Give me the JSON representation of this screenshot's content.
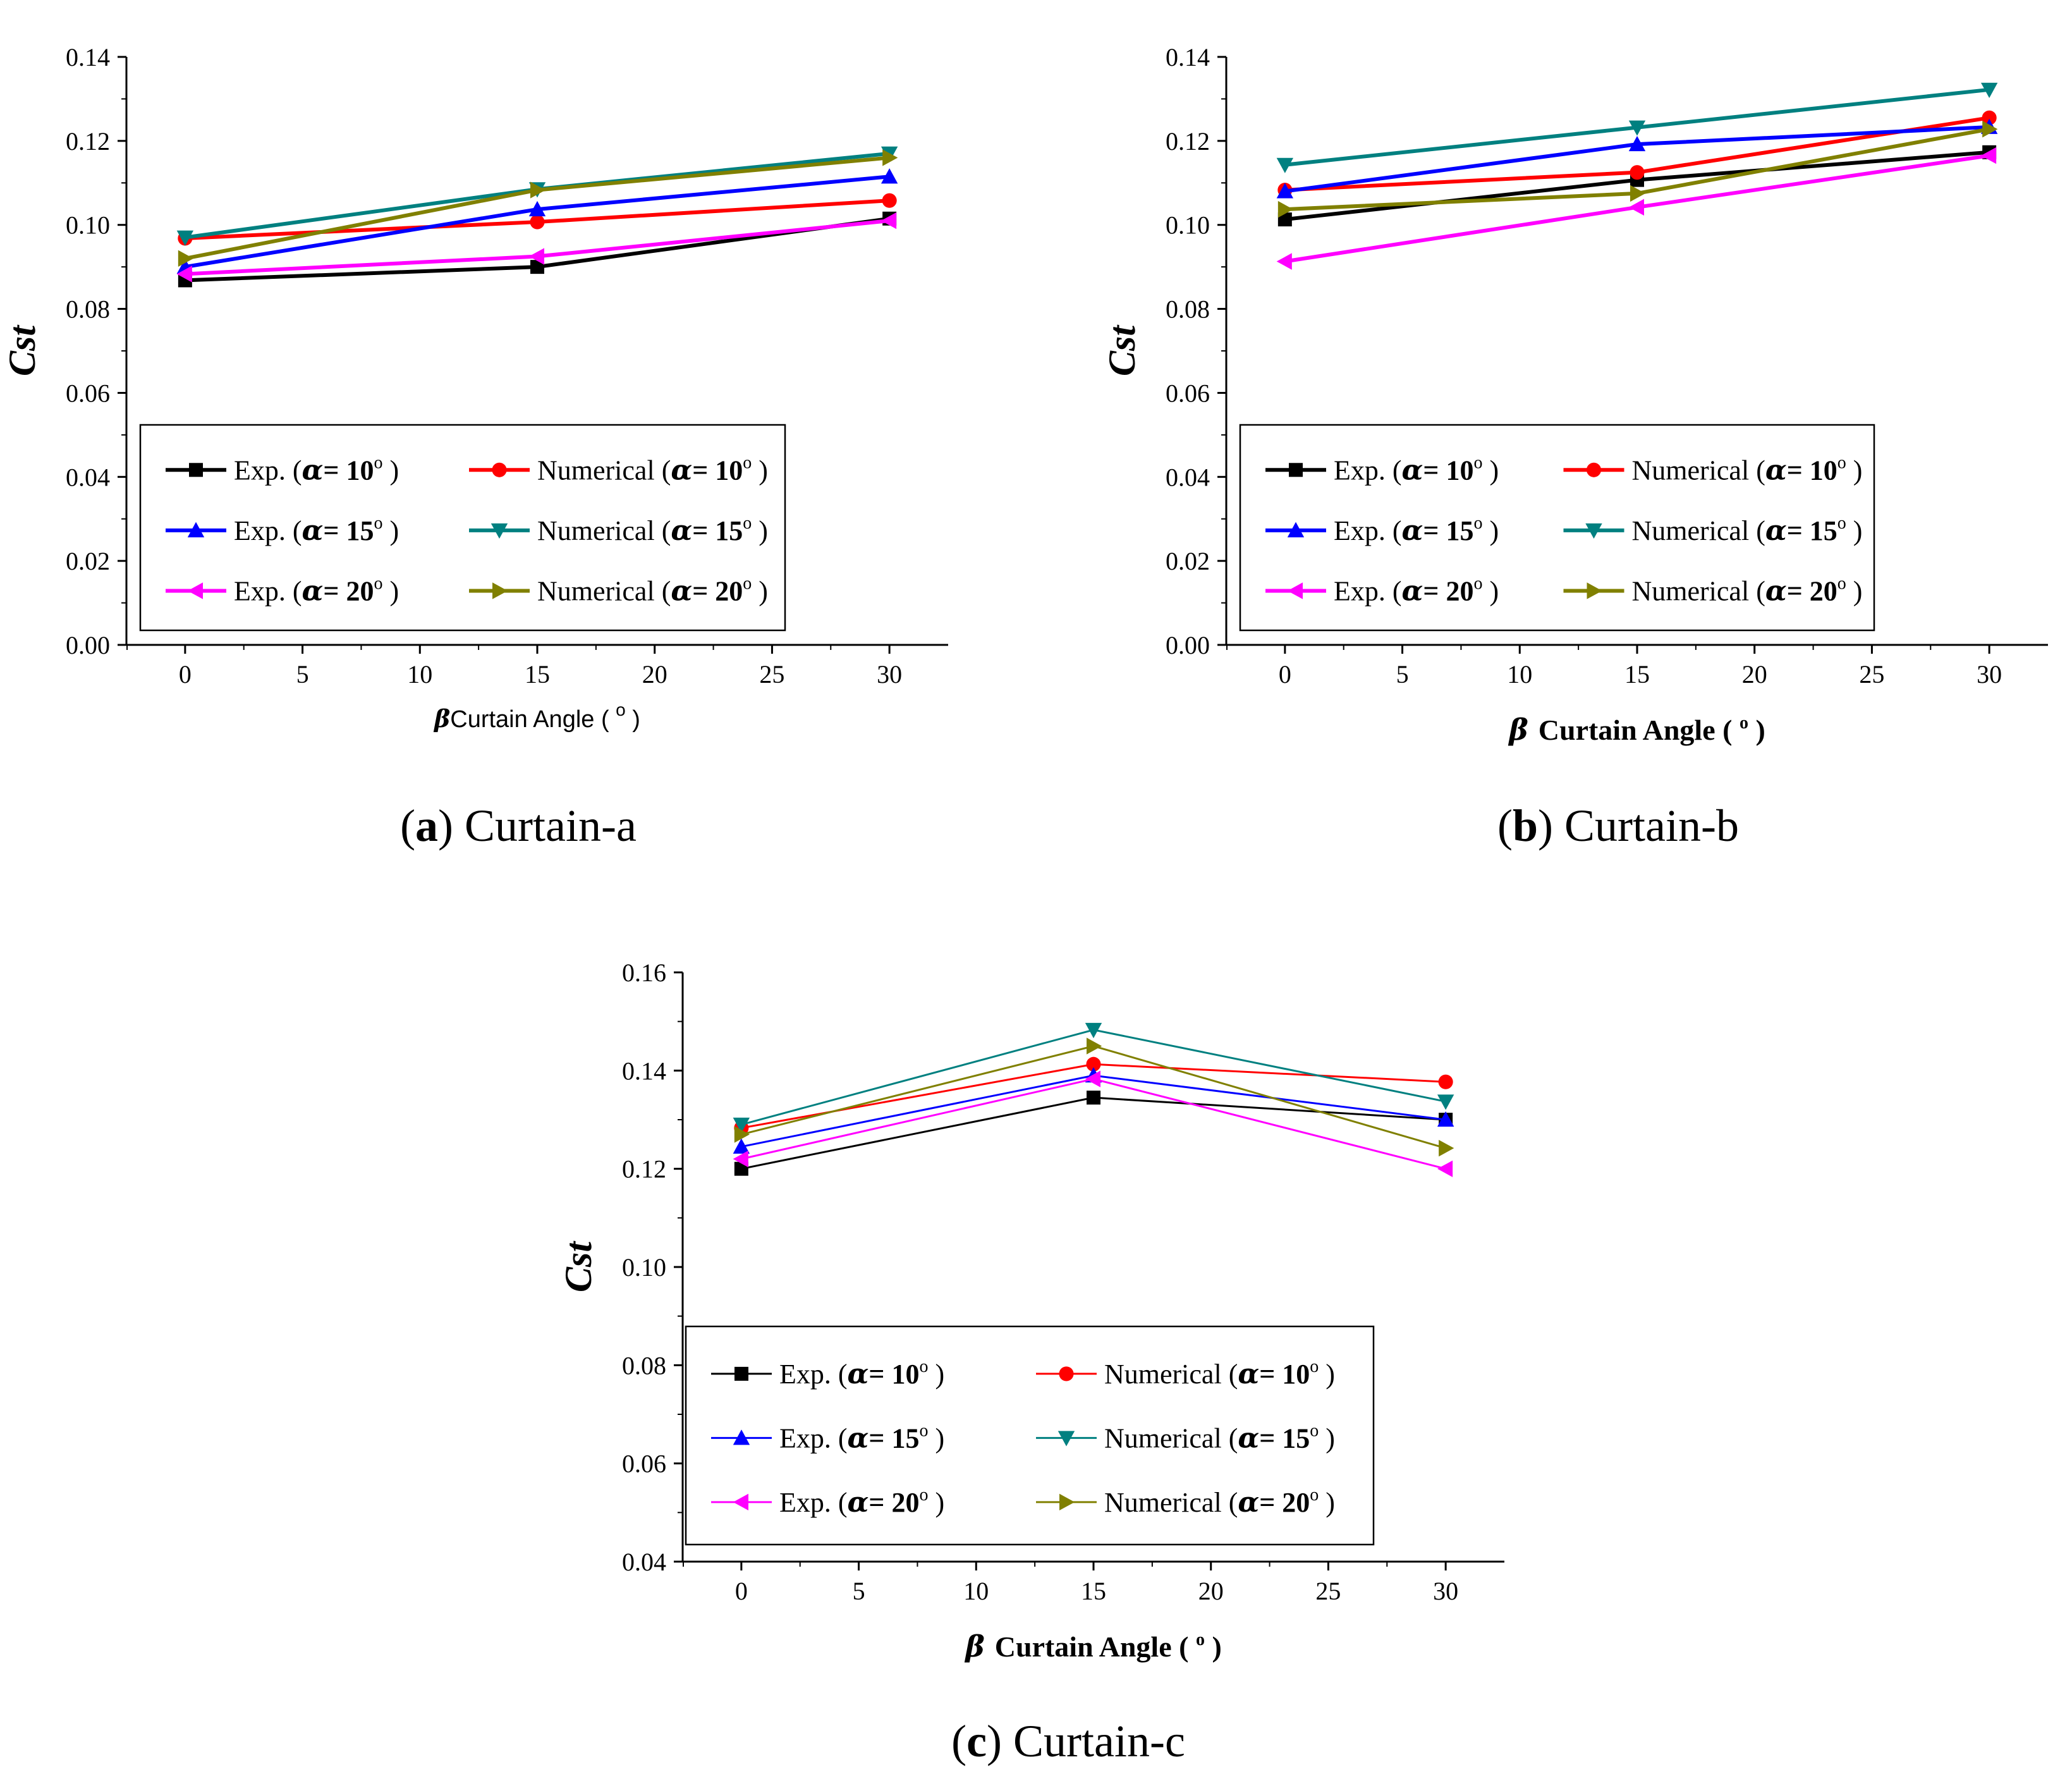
{
  "chart_data": [
    {
      "type": "line",
      "title": "",
      "xlabel": {
        "symbol": "β",
        "text": "Curtain Angle (",
        "degree": "o",
        "close": ")"
      },
      "ylabel": "Cst",
      "x": [
        0,
        15,
        30
      ],
      "xlim": [
        -2.5,
        32.5
      ],
      "ylim": [
        0,
        0.14
      ],
      "xticks": [
        0,
        5,
        10,
        15,
        20,
        25,
        30
      ],
      "yticks": [
        0,
        0.02,
        0.04,
        0.06,
        0.08,
        0.1,
        0.12,
        0.14
      ],
      "ytick_labels": [
        "0.00",
        "0.02",
        "0.04",
        "0.06",
        "0.08",
        "0.10",
        "0.12",
        "0.14"
      ],
      "legend_position": "lower-left",
      "caption": {
        "letter": "a",
        "text": "Curtain-a"
      },
      "series": [
        {
          "name": "Exp.",
          "alpha": "10",
          "color": "#000000",
          "marker": "square",
          "values": [
            0.0868,
            0.09,
            0.1015
          ]
        },
        {
          "name": "Numerical",
          "alpha": "10",
          "color": "#ff0000",
          "marker": "circle",
          "values": [
            0.0968,
            0.1007,
            0.1058
          ]
        },
        {
          "name": "Exp.",
          "alpha": "15",
          "color": "#0000ff",
          "marker": "triangle-up",
          "values": [
            0.09,
            0.1037,
            0.1115
          ]
        },
        {
          "name": "Numerical",
          "alpha": "15",
          "color": "#008080",
          "marker": "triangle-down",
          "values": [
            0.097,
            0.1085,
            0.117
          ]
        },
        {
          "name": "Exp.",
          "alpha": "20",
          "color": "#ff00ff",
          "marker": "triangle-left",
          "values": [
            0.0883,
            0.0925,
            0.101
          ]
        },
        {
          "name": "Numerical",
          "alpha": "20",
          "color": "#808000",
          "marker": "triangle-right",
          "values": [
            0.092,
            0.1083,
            0.116
          ]
        }
      ]
    },
    {
      "type": "line",
      "title": "",
      "xlabel": {
        "symbol": "β",
        "text": "Curtain Angle (",
        "degree": "o",
        "close": ")"
      },
      "ylabel": "Cst",
      "x": [
        0,
        15,
        30
      ],
      "xlim": [
        -2.5,
        32.5
      ],
      "ylim": [
        0,
        0.14
      ],
      "xticks": [
        0,
        5,
        10,
        15,
        20,
        25,
        30
      ],
      "yticks": [
        0,
        0.02,
        0.04,
        0.06,
        0.08,
        0.1,
        0.12,
        0.14
      ],
      "ytick_labels": [
        "0.00",
        "0.02",
        "0.04",
        "0.06",
        "0.08",
        "0.10",
        "0.12",
        "0.14"
      ],
      "legend_position": "lower-left",
      "caption": {
        "letter": "b",
        "text": "Curtain-b"
      },
      "series": [
        {
          "name": "Exp.",
          "alpha": "10",
          "color": "#000000",
          "marker": "square",
          "values": [
            0.1013,
            0.1107,
            0.1173
          ]
        },
        {
          "name": "Numerical",
          "alpha": "10",
          "color": "#ff0000",
          "marker": "circle",
          "values": [
            0.1083,
            0.1125,
            0.1255
          ]
        },
        {
          "name": "Exp.",
          "alpha": "15",
          "color": "#0000ff",
          "marker": "triangle-up",
          "values": [
            0.108,
            0.1192,
            0.1233
          ]
        },
        {
          "name": "Numerical",
          "alpha": "15",
          "color": "#008080",
          "marker": "triangle-down",
          "values": [
            0.1143,
            0.1232,
            0.1322
          ]
        },
        {
          "name": "Exp.",
          "alpha": "20",
          "color": "#ff00ff",
          "marker": "triangle-left",
          "values": [
            0.0913,
            0.1042,
            0.1165
          ]
        },
        {
          "name": "Numerical",
          "alpha": "20",
          "color": "#808000",
          "marker": "triangle-right",
          "values": [
            0.1037,
            0.1075,
            0.1228
          ]
        }
      ]
    },
    {
      "type": "line",
      "title": "",
      "xlabel": {
        "symbol": "β",
        "text": "Curtain Angle (",
        "degree": "o",
        "close": ")"
      },
      "ylabel": "Cst",
      "x": [
        0,
        15,
        30
      ],
      "xlim": [
        -2.5,
        32.5
      ],
      "ylim": [
        0.04,
        0.16
      ],
      "xticks": [
        0,
        5,
        10,
        15,
        20,
        25,
        30
      ],
      "yticks": [
        0.04,
        0.06,
        0.08,
        0.1,
        0.12,
        0.14,
        0.16
      ],
      "ytick_labels": [
        "0.04",
        "0.06",
        "0.08",
        "0.10",
        "0.12",
        "0.14",
        "0.16"
      ],
      "legend_position": "lower-left",
      "caption": {
        "letter": "c",
        "text": "Curtain-c"
      },
      "series": [
        {
          "name": "Exp.",
          "alpha": "10",
          "color": "#000000",
          "marker": "square",
          "values": [
            0.12,
            0.1345,
            0.13
          ]
        },
        {
          "name": "Numerical",
          "alpha": "10",
          "color": "#ff0000",
          "marker": "circle",
          "values": [
            0.1283,
            0.1413,
            0.1377
          ]
        },
        {
          "name": "Exp.",
          "alpha": "15",
          "color": "#0000ff",
          "marker": "triangle-up",
          "values": [
            0.1245,
            0.139,
            0.13
          ]
        },
        {
          "name": "Numerical",
          "alpha": "15",
          "color": "#008080",
          "marker": "triangle-down",
          "values": [
            0.129,
            0.1483,
            0.1337
          ]
        },
        {
          "name": "Exp.",
          "alpha": "20",
          "color": "#ff00ff",
          "marker": "triangle-left",
          "values": [
            0.122,
            0.1383,
            0.12
          ]
        },
        {
          "name": "Numerical",
          "alpha": "20",
          "color": "#808000",
          "marker": "triangle-right",
          "values": [
            0.127,
            0.145,
            0.1242
          ]
        }
      ]
    }
  ],
  "legend_text": {
    "alpha_symbol": "α",
    "equals": "= ",
    "degree": "o"
  }
}
